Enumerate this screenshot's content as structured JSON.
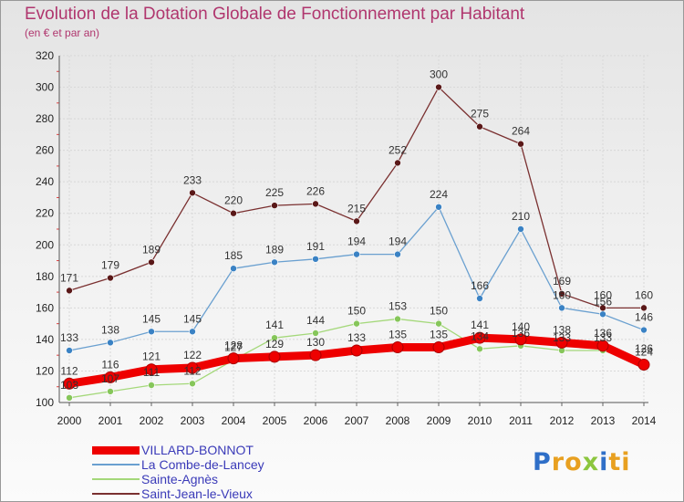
{
  "title": "Evolution de la Dotation Globale de Fonctionnement par Habitant",
  "subtitle": "(en € et par an)",
  "logo": {
    "text": "Proxiti",
    "letters": [
      "P",
      "r",
      "o",
      "x",
      "i",
      "t",
      "i"
    ],
    "colors": [
      "#2f6fc8",
      "#e8a020",
      "#e8a020",
      "#8cc63e",
      "#2f6fc8",
      "#e8a020",
      "#e8a020"
    ]
  },
  "chart_data": {
    "type": "line",
    "title": "Evolution de la Dotation Globale de Fonctionnement par Habitant",
    "subtitle": "(en € et par an)",
    "xlabel": "",
    "ylabel": "",
    "ylim": [
      100,
      320
    ],
    "yticks": [
      100,
      120,
      140,
      160,
      180,
      200,
      220,
      240,
      260,
      280,
      300,
      320
    ],
    "grid": true,
    "legend": "bottom-left",
    "x": [
      "2000",
      "2001",
      "2002",
      "2003",
      "2004",
      "2005",
      "2006",
      "2007",
      "2008",
      "2009",
      "2010",
      "2011",
      "2012",
      "2013",
      "2014"
    ],
    "series": [
      {
        "name": "VILLARD-BONNOT",
        "color": "#ee0000",
        "marker": "#ee0000",
        "values": [
          112,
          116,
          121,
          122,
          128,
          129,
          130,
          133,
          135,
          135,
          141,
          140,
          138,
          136,
          124
        ]
      },
      {
        "name": "La Combe-de-Lancey",
        "color": "#6aa0d0",
        "marker": "#3a82c4",
        "values": [
          133,
          138,
          145,
          145,
          185,
          189,
          191,
          194,
          194,
          224,
          166,
          210,
          160,
          156,
          146
        ]
      },
      {
        "name": "Sainte-Agnès",
        "color": "#a4d87a",
        "marker": "#86c65a",
        "values": [
          103,
          107,
          111,
          112,
          127,
          141,
          144,
          150,
          153,
          150,
          134,
          136,
          133,
          133,
          126
        ]
      },
      {
        "name": "Saint-Jean-le-Vieux",
        "color": "#7a3030",
        "marker": "#5a1818",
        "values": [
          171,
          179,
          189,
          233,
          220,
          225,
          226,
          215,
          252,
          300,
          275,
          264,
          169,
          160,
          160
        ]
      }
    ]
  }
}
